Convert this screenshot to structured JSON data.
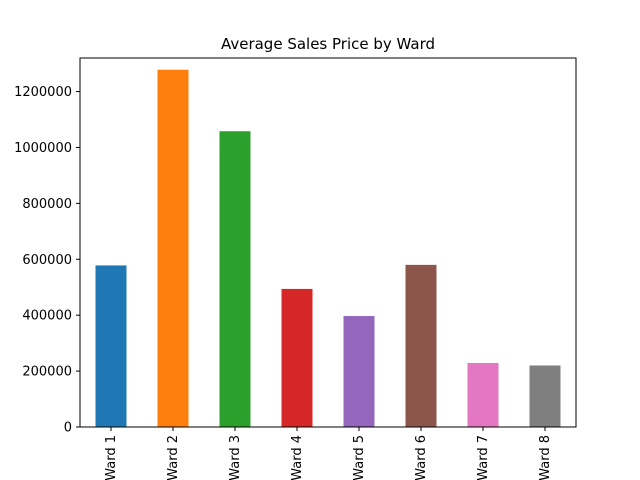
{
  "chart_data": {
    "type": "bar",
    "title": "Average Sales Price by Ward",
    "xlabel": "",
    "ylabel": "",
    "categories": [
      "Ward 1",
      "Ward 2",
      "Ward 3",
      "Ward 4",
      "Ward 5",
      "Ward 6",
      "Ward 7",
      "Ward 8"
    ],
    "values": [
      578000,
      1278000,
      1058000,
      494000,
      397000,
      580000,
      229000,
      220000
    ],
    "colors": [
      "#1f77b4",
      "#ff7f0e",
      "#2ca02c",
      "#d62728",
      "#9467bd",
      "#8c564b",
      "#e377c2",
      "#7f7f7f"
    ],
    "ylim": [
      0,
      1320000
    ],
    "yticks": [
      0,
      200000,
      400000,
      600000,
      800000,
      1000000,
      1200000
    ],
    "ytick_labels": [
      "0",
      "200000",
      "400000",
      "600000",
      "800000",
      "1000000",
      "1200000"
    ],
    "grid": false,
    "legend": "none"
  }
}
